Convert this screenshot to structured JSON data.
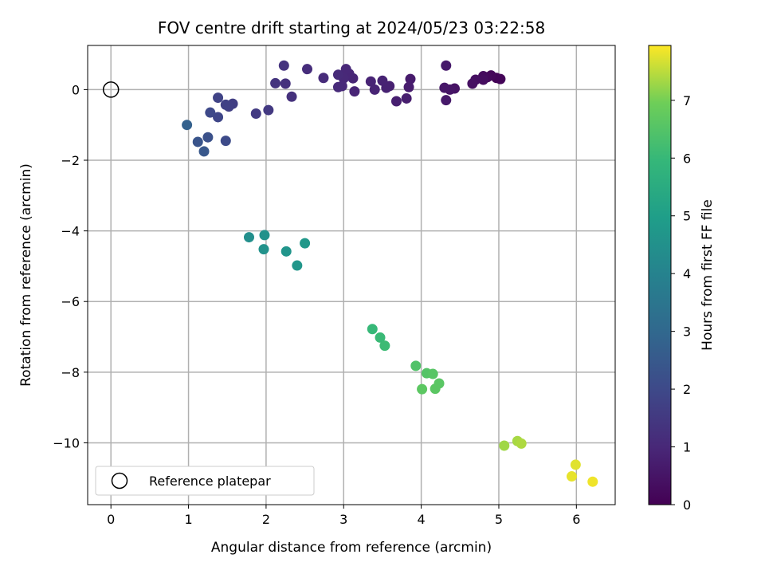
{
  "chart_data": {
    "type": "scatter",
    "title": "FOV centre drift starting at 2024/05/23 03:22:58",
    "xlabel": "Angular distance from reference (arcmin)",
    "ylabel": "Rotation from reference (arcmin)",
    "xlim": [
      -0.3,
      6.5
    ],
    "ylim": [
      -11.75,
      1.25
    ],
    "xticks": [
      0,
      1,
      2,
      3,
      4,
      5,
      6
    ],
    "yticks": [
      0,
      -2,
      -4,
      -6,
      -8,
      -10
    ],
    "grid": true,
    "colormap": "viridis",
    "colorbar": {
      "label": "Hours from first FF file",
      "range": [
        0,
        7.95
      ],
      "ticks": [
        0,
        1,
        2,
        3,
        4,
        5,
        6,
        7
      ]
    },
    "legend": {
      "position": "lower-left",
      "entries": [
        "Reference platepar"
      ]
    },
    "reference_point": {
      "x": 0,
      "y": 0
    },
    "points": [
      {
        "x": 4.97,
        "y": 0.33,
        "c": 0.05
      },
      {
        "x": 5.02,
        "y": 0.3,
        "c": 0.1
      },
      {
        "x": 4.9,
        "y": 0.4,
        "c": 0.15
      },
      {
        "x": 4.85,
        "y": 0.35,
        "c": 0.2
      },
      {
        "x": 4.8,
        "y": 0.38,
        "c": 0.25
      },
      {
        "x": 4.8,
        "y": 0.28,
        "c": 0.3
      },
      {
        "x": 4.7,
        "y": 0.28,
        "c": 0.35
      },
      {
        "x": 4.66,
        "y": 0.17,
        "c": 0.4
      },
      {
        "x": 4.43,
        "y": 0.03,
        "c": 0.45
      },
      {
        "x": 4.37,
        "y": 0.0,
        "c": 0.5
      },
      {
        "x": 4.3,
        "y": 0.05,
        "c": 0.55
      },
      {
        "x": 4.32,
        "y": -0.3,
        "c": 0.6
      },
      {
        "x": 4.32,
        "y": 0.68,
        "c": 0.62
      },
      {
        "x": 3.86,
        "y": 0.3,
        "c": 0.66
      },
      {
        "x": 3.84,
        "y": 0.07,
        "c": 0.7
      },
      {
        "x": 3.81,
        "y": -0.25,
        "c": 0.73
      },
      {
        "x": 3.68,
        "y": -0.33,
        "c": 0.76
      },
      {
        "x": 3.59,
        "y": 0.1,
        "c": 0.8
      },
      {
        "x": 3.55,
        "y": 0.05,
        "c": 0.83
      },
      {
        "x": 3.5,
        "y": 0.25,
        "c": 0.86
      },
      {
        "x": 3.4,
        "y": 0.0,
        "c": 0.88
      },
      {
        "x": 3.35,
        "y": 0.23,
        "c": 0.9
      },
      {
        "x": 3.14,
        "y": -0.05,
        "c": 0.93
      },
      {
        "x": 3.12,
        "y": 0.32,
        "c": 0.95
      },
      {
        "x": 3.07,
        "y": 0.45,
        "c": 0.97
      },
      {
        "x": 3.03,
        "y": 0.58,
        "c": 0.99
      },
      {
        "x": 3.0,
        "y": 0.32,
        "c": 1.01
      },
      {
        "x": 2.98,
        "y": 0.1,
        "c": 1.03
      },
      {
        "x": 2.93,
        "y": 0.07,
        "c": 1.05
      },
      {
        "x": 2.93,
        "y": 0.42,
        "c": 1.07
      },
      {
        "x": 2.74,
        "y": 0.33,
        "c": 1.1
      },
      {
        "x": 2.53,
        "y": 0.58,
        "c": 1.15
      },
      {
        "x": 2.33,
        "y": -0.2,
        "c": 1.25
      },
      {
        "x": 2.25,
        "y": 0.17,
        "c": 1.3
      },
      {
        "x": 2.23,
        "y": 0.68,
        "c": 1.33
      },
      {
        "x": 2.12,
        "y": 0.18,
        "c": 1.37
      },
      {
        "x": 2.03,
        "y": -0.58,
        "c": 1.5
      },
      {
        "x": 1.87,
        "y": -0.68,
        "c": 1.55
      },
      {
        "x": 1.57,
        "y": -0.4,
        "c": 1.65
      },
      {
        "x": 1.52,
        "y": -0.48,
        "c": 1.7
      },
      {
        "x": 1.48,
        "y": -0.43,
        "c": 1.75
      },
      {
        "x": 1.38,
        "y": -0.23,
        "c": 1.8
      },
      {
        "x": 1.38,
        "y": -0.78,
        "c": 1.9
      },
      {
        "x": 1.28,
        "y": -0.65,
        "c": 2.0
      },
      {
        "x": 1.48,
        "y": -1.45,
        "c": 2.05
      },
      {
        "x": 1.25,
        "y": -1.35,
        "c": 2.25
      },
      {
        "x": 1.12,
        "y": -1.48,
        "c": 2.35
      },
      {
        "x": 1.2,
        "y": -1.75,
        "c": 2.45
      },
      {
        "x": 0.98,
        "y": -1.0,
        "c": 2.75
      },
      {
        "x": 1.78,
        "y": -4.18,
        "c": 4.45
      },
      {
        "x": 1.98,
        "y": -4.12,
        "c": 4.5
      },
      {
        "x": 1.97,
        "y": -4.52,
        "c": 4.55
      },
      {
        "x": 2.26,
        "y": -4.58,
        "c": 4.65
      },
      {
        "x": 2.4,
        "y": -4.98,
        "c": 4.7
      },
      {
        "x": 2.5,
        "y": -4.35,
        "c": 4.75
      },
      {
        "x": 3.37,
        "y": -6.78,
        "c": 6.0
      },
      {
        "x": 3.47,
        "y": -7.02,
        "c": 6.05
      },
      {
        "x": 3.53,
        "y": -7.25,
        "c": 6.1
      },
      {
        "x": 3.93,
        "y": -7.82,
        "c": 6.45
      },
      {
        "x": 4.07,
        "y": -8.03,
        "c": 6.5
      },
      {
        "x": 4.15,
        "y": -8.05,
        "c": 6.55
      },
      {
        "x": 4.23,
        "y": -8.32,
        "c": 6.6
      },
      {
        "x": 4.18,
        "y": -8.47,
        "c": 6.63
      },
      {
        "x": 4.01,
        "y": -8.48,
        "c": 6.65
      },
      {
        "x": 5.07,
        "y": -10.08,
        "c": 7.3
      },
      {
        "x": 5.24,
        "y": -9.95,
        "c": 7.35
      },
      {
        "x": 5.29,
        "y": -10.02,
        "c": 7.4
      },
      {
        "x": 5.99,
        "y": -10.62,
        "c": 7.75
      },
      {
        "x": 5.94,
        "y": -10.95,
        "c": 7.8
      },
      {
        "x": 6.21,
        "y": -11.1,
        "c": 7.85
      }
    ]
  }
}
